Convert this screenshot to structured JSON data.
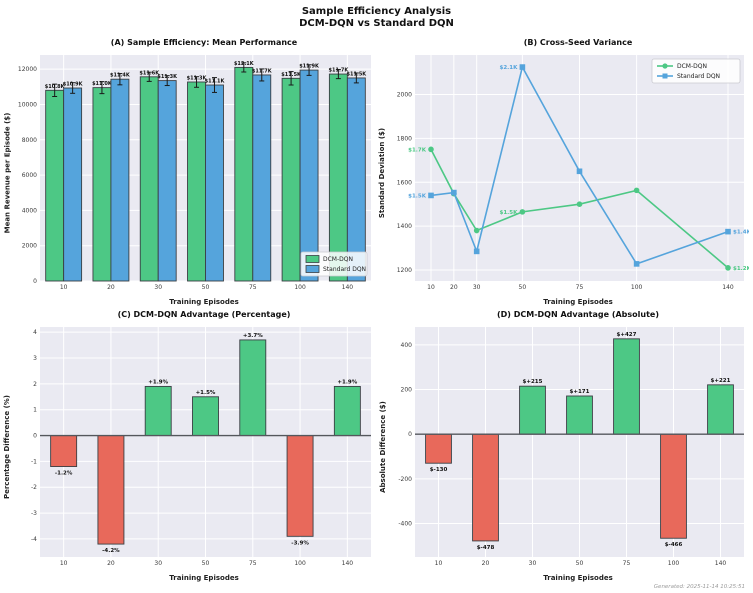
{
  "page": {
    "suptitle_line1": "Sample Efficiency Analysis",
    "suptitle_line2": "DCM-DQN vs Standard DQN",
    "footer": "Generated: 2025-11-14 10:25:51"
  },
  "colors": {
    "green": "#4dc885",
    "blue": "#55a4dc",
    "red": "#e8695b",
    "plot_bg": "#eaeaf2",
    "grid": "#ffffff",
    "edge": "#3a3f44"
  },
  "chart_data": [
    {
      "id": "A",
      "type": "grouped_bar",
      "title": "(A) Sample Efficiency: Mean Performance",
      "xlabel": "Training Episodes",
      "ylabel": "Mean Revenue per Episode ($)",
      "categories": [
        "10",
        "20",
        "30",
        "50",
        "75",
        "100",
        "140"
      ],
      "series": [
        {
          "name": "DCM-DQN",
          "color_key": "green",
          "values": [
            10800,
            10952,
            11565,
            11271,
            12097,
            11480,
            11721
          ],
          "errors": [
            350,
            340,
            260,
            300,
            260,
            380,
            260
          ],
          "labels": [
            "$10.8K",
            "$11.0K",
            "$11.6K",
            "$11.3K",
            "$12.1K",
            "$11.5K",
            "$11.7K"
          ]
        },
        {
          "name": "Standard DQN",
          "color_key": "blue",
          "values": [
            10930,
            11430,
            11350,
            11100,
            11670,
            11946,
            11500
          ],
          "errors": [
            300,
            320,
            280,
            420,
            340,
            300,
            280
          ],
          "labels": [
            "$10.9K",
            "$11.4K",
            "$11.3K",
            "$11.1K",
            "$11.7K",
            "$11.9K",
            "$11.5K"
          ]
        }
      ],
      "ylim": [
        0,
        12800
      ],
      "yticks": [
        0,
        2000,
        4000,
        6000,
        8000,
        10000,
        12000
      ],
      "legend": {
        "position": "lower-right"
      }
    },
    {
      "id": "B",
      "type": "line",
      "title": "(B) Cross-Seed Variance",
      "xlabel": "Training Episodes",
      "ylabel": "Standard Deviation ($)",
      "x": [
        10,
        20,
        30,
        50,
        75,
        100,
        140
      ],
      "xlim": [
        3,
        147
      ],
      "series": [
        {
          "name": "DCM-DQN",
          "color_key": "green",
          "marker": "circle",
          "values": [
            1750,
            1548,
            1380,
            1465,
            1500,
            1563,
            1210
          ]
        },
        {
          "name": "Standard DQN",
          "color_key": "blue",
          "marker": "square",
          "values": [
            1540,
            1553,
            1285,
            2125,
            1650,
            1228,
            1375
          ]
        }
      ],
      "annotations": [
        {
          "series": 0,
          "x": 10,
          "text": "$1.7K",
          "side": "left"
        },
        {
          "series": 1,
          "x": 10,
          "text": "$1.5K",
          "side": "left"
        },
        {
          "series": 0,
          "x": 50,
          "text": "$1.5K",
          "side": "left"
        },
        {
          "series": 1,
          "x": 50,
          "text": "$2.1K",
          "side": "left"
        },
        {
          "series": 0,
          "x": 140,
          "text": "$1.2K",
          "side": "right"
        },
        {
          "series": 1,
          "x": 140,
          "text": "$1.4K",
          "side": "right"
        }
      ],
      "ylim": [
        1150,
        2180
      ],
      "yticks": [
        1200,
        1400,
        1600,
        1800,
        2000
      ],
      "legend": {
        "position": "upper-right"
      }
    },
    {
      "id": "C",
      "type": "diverging_bar",
      "title": "(C) DCM-DQN Advantage (Percentage)",
      "xlabel": "Training Episodes",
      "ylabel": "Percentage Difference (%)",
      "categories": [
        "10",
        "20",
        "30",
        "50",
        "75",
        "100",
        "140"
      ],
      "values": [
        -1.2,
        -4.2,
        1.9,
        1.5,
        3.7,
        -3.9,
        1.9
      ],
      "labels": [
        "-1.2%",
        "-4.2%",
        "+1.9%",
        "+1.5%",
        "+3.7%",
        "-3.9%",
        "+1.9%"
      ],
      "ylim": [
        -4.7,
        4.2
      ],
      "yticks": [
        -4,
        -3,
        -2,
        -1,
        0,
        1,
        2,
        3,
        4
      ]
    },
    {
      "id": "D",
      "type": "diverging_bar",
      "title": "(D) DCM-DQN Advantage (Absolute)",
      "xlabel": "Training Episodes",
      "ylabel": "Absolute Difference ($)",
      "categories": [
        "10",
        "20",
        "30",
        "50",
        "75",
        "100",
        "140"
      ],
      "values": [
        -130,
        -478,
        215,
        171,
        427,
        -466,
        221
      ],
      "labels": [
        "$-130",
        "$-478",
        "$+215",
        "$+171",
        "$+427",
        "$-466",
        "$+221"
      ],
      "ylim": [
        -550,
        480
      ],
      "yticks": [
        -400,
        -200,
        0,
        200,
        400
      ]
    }
  ]
}
